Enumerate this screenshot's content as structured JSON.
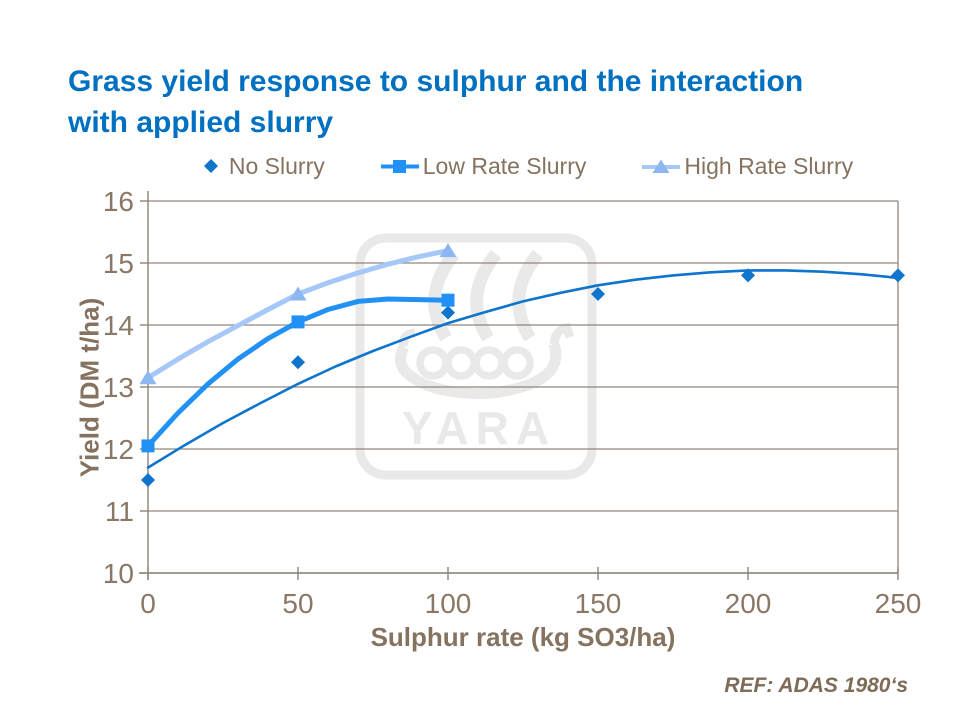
{
  "header": {
    "title": "Grass yield response to sulphur and the interaction with applied slurry",
    "title_color": "#0070C0"
  },
  "footer": {
    "ref": "REF: ADAS 1980‘s",
    "color": "#7E6C57"
  },
  "watermark": {
    "brand": "YARA",
    "color": "#E9E9E9"
  },
  "chart_data": {
    "type": "line",
    "title": "Grass yield response to sulphur and the interaction with applied slurry",
    "xlabel": "Sulphur rate (kg SO3/ha)",
    "ylabel": "Yield (DM t/ha)",
    "xlim": [
      0,
      250
    ],
    "ylim": [
      10,
      16
    ],
    "xticks": [
      0,
      50,
      100,
      150,
      200,
      250
    ],
    "yticks": [
      10,
      11,
      12,
      13,
      14,
      15,
      16
    ],
    "grid": true,
    "legend_position": "top",
    "axis_color": "#8C8678",
    "grid_color": "#8F897D",
    "tick_label_color": "#8A7766",
    "axis_title_color": "#857360",
    "legend_text_color": "#857360",
    "series": [
      {
        "name": "No Slurry",
        "marker": "diamond",
        "color": "#0E74CC",
        "marker_color": "#0E74CC",
        "line_width": 2.6,
        "line_style": "fitted-trendline",
        "points": {
          "x": [
            0,
            50,
            100,
            150,
            200,
            250
          ],
          "y": [
            11.5,
            13.4,
            14.2,
            14.5,
            14.8,
            14.8
          ]
        },
        "curve": {
          "x": [
            0,
            12.5,
            25,
            37.5,
            50,
            62.5,
            75,
            87.5,
            100,
            112.5,
            125,
            137.5,
            150,
            162.5,
            175,
            187.5,
            200,
            212.5,
            225,
            237.5,
            250
          ],
          "y": [
            11.7,
            12.07,
            12.42,
            12.74,
            13.05,
            13.33,
            13.58,
            13.81,
            14.03,
            14.21,
            14.38,
            14.52,
            14.64,
            14.73,
            14.8,
            14.85,
            14.88,
            14.88,
            14.86,
            14.82,
            14.76
          ]
        }
      },
      {
        "name": "Low Rate Slurry",
        "marker": "square",
        "color": "#2191F5",
        "marker_color": "#2191F5",
        "line_width": 5,
        "line_style": "smooth",
        "points": {
          "x": [
            0,
            50,
            100
          ],
          "y": [
            12.05,
            14.05,
            14.4
          ]
        },
        "curve": {
          "x": [
            0,
            10,
            20,
            30,
            40,
            50,
            60,
            70,
            80,
            90,
            100
          ],
          "y": [
            12.05,
            12.58,
            13.05,
            13.45,
            13.78,
            14.05,
            14.25,
            14.38,
            14.42,
            14.41,
            14.4
          ]
        }
      },
      {
        "name": "High Rate Slurry",
        "marker": "triangle",
        "color": "#A5C8F8",
        "marker_color": "#8DB7F1",
        "line_width": 5,
        "line_style": "smooth",
        "points": {
          "x": [
            0,
            50,
            100
          ],
          "y": [
            13.15,
            14.5,
            15.2
          ]
        },
        "curve": {
          "x": [
            0,
            10,
            20,
            30,
            40,
            50,
            60,
            70,
            80,
            90,
            100
          ],
          "y": [
            13.15,
            13.45,
            13.73,
            13.99,
            14.25,
            14.5,
            14.68,
            14.84,
            14.98,
            15.1,
            15.2
          ]
        }
      }
    ]
  }
}
